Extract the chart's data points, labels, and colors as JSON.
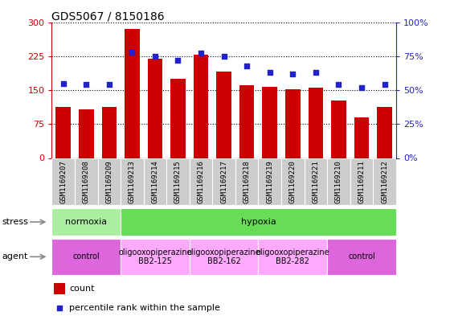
{
  "title": "GDS5067 / 8150186",
  "samples": [
    "GSM1169207",
    "GSM1169208",
    "GSM1169209",
    "GSM1169213",
    "GSM1169214",
    "GSM1169215",
    "GSM1169216",
    "GSM1169217",
    "GSM1169218",
    "GSM1169219",
    "GSM1169220",
    "GSM1169221",
    "GSM1169210",
    "GSM1169211",
    "GSM1169212"
  ],
  "counts": [
    113,
    108,
    112,
    285,
    220,
    175,
    228,
    190,
    160,
    157,
    151,
    155,
    127,
    90,
    112
  ],
  "percentiles": [
    55,
    54,
    54,
    78,
    75,
    72,
    77,
    75,
    68,
    63,
    62,
    63,
    54,
    52,
    54
  ],
  "bar_color": "#cc0000",
  "dot_color": "#2222cc",
  "ylim_left": [
    0,
    300
  ],
  "ylim_right": [
    0,
    100
  ],
  "yticks_left": [
    0,
    75,
    150,
    225,
    300
  ],
  "yticks_right": [
    0,
    25,
    50,
    75,
    100
  ],
  "ytick_labels_left": [
    "0",
    "75",
    "150",
    "225",
    "300"
  ],
  "ytick_labels_right": [
    "0%",
    "25%",
    "50%",
    "75%",
    "100%"
  ],
  "stress_groups": [
    {
      "label": "normoxia",
      "start": 0,
      "end": 3,
      "color": "#aaeea0"
    },
    {
      "label": "hypoxia",
      "start": 3,
      "end": 15,
      "color": "#66dd55"
    }
  ],
  "agent_groups": [
    {
      "label": "control",
      "start": 0,
      "end": 3,
      "color": "#dd66dd"
    },
    {
      "label": "oligooxopiperazine\nBB2-125",
      "start": 3,
      "end": 6,
      "color": "#ffaaff"
    },
    {
      "label": "oligooxopiperazine\nBB2-162",
      "start": 6,
      "end": 9,
      "color": "#ffaaff"
    },
    {
      "label": "oligooxopiperazine\nBB2-282",
      "start": 9,
      "end": 12,
      "color": "#ffaaff"
    },
    {
      "label": "control",
      "start": 12,
      "end": 15,
      "color": "#dd66dd"
    }
  ],
  "legend_count_label": "count",
  "legend_pct_label": "percentile rank within the sample",
  "plot_bg": "#ffffff",
  "xlabel_bg": "#cccccc"
}
